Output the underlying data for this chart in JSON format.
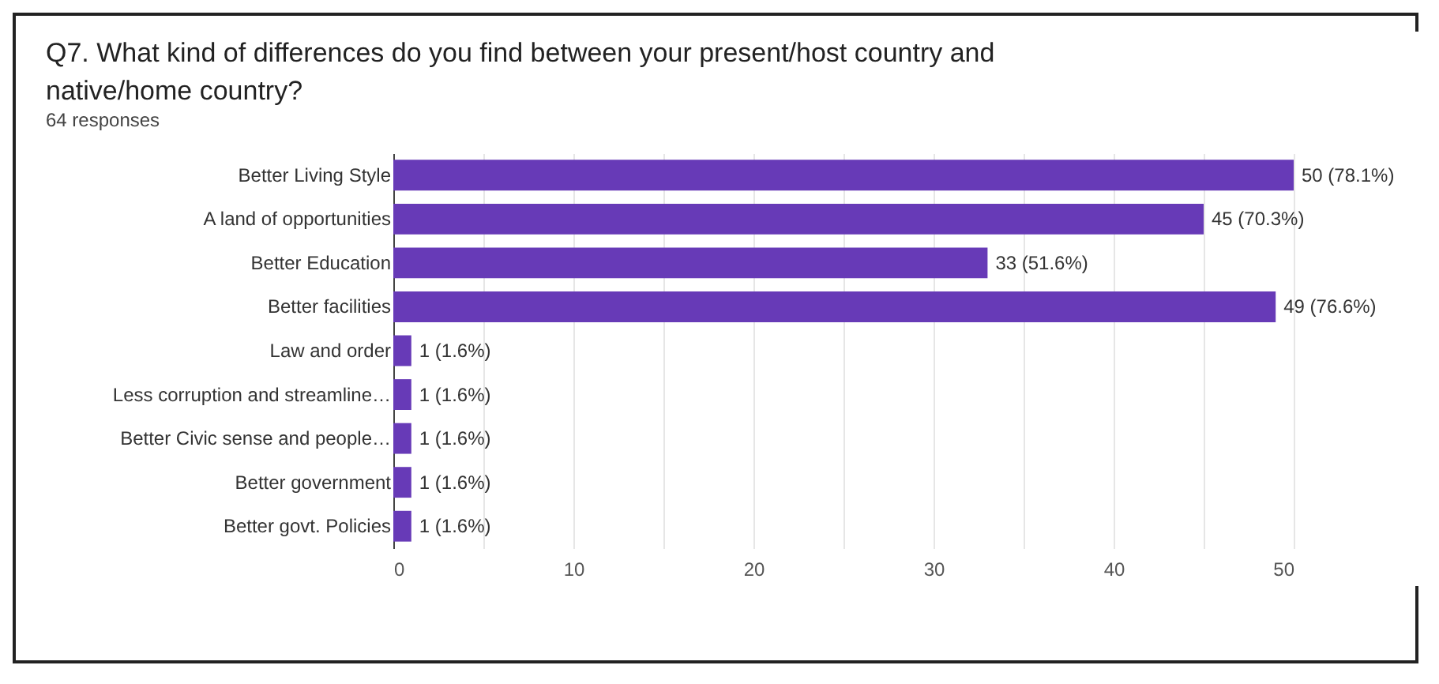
{
  "chart_data": {
    "type": "bar",
    "orientation": "horizontal",
    "title": "Q7. What kind of differences do you find between your present/host country and native/home country?",
    "subtitle": "64 responses",
    "categories": [
      "Better Living Style",
      "A land of opportunities",
      "Better Education",
      "Better facilities",
      "Law and order",
      "Less corruption and streamline…",
      "Better Civic sense and people…",
      "Better government",
      "Better govt. Policies"
    ],
    "values": [
      50,
      45,
      33,
      49,
      1,
      1,
      1,
      1,
      1
    ],
    "value_labels": [
      "50 (78.1%)",
      "45 (70.3%)",
      "33 (51.6%)",
      "49 (76.6%)",
      "1 (1.6%)",
      "1 (1.6%)",
      "1 (1.6%)",
      "1 (1.6%)",
      "1 (1.6%)"
    ],
    "color": "#673ab7",
    "xlim": [
      0,
      50
    ],
    "xticks": [
      0,
      {
        "value": 5,
        "label": null
      },
      10,
      {
        "value": 15,
        "label": null
      },
      20,
      {
        "value": 25,
        "label": null
      },
      30,
      {
        "value": 35,
        "label": null
      },
      40,
      {
        "value": 45,
        "label": null
      },
      50
    ],
    "grid": "x"
  }
}
